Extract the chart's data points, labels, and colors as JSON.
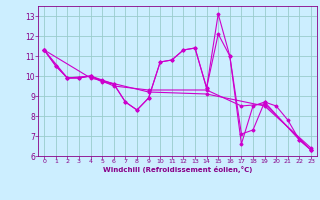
{
  "title": "",
  "xlabel": "Windchill (Refroidissement éolien,°C)",
  "ylabel": "",
  "background_color": "#cceeff",
  "grid_color": "#99cccc",
  "line_color": "#cc00cc",
  "xlim": [
    -0.5,
    23.5
  ],
  "ylim": [
    6,
    13.5
  ],
  "xticks": [
    0,
    1,
    2,
    3,
    4,
    5,
    6,
    7,
    8,
    9,
    10,
    11,
    12,
    13,
    14,
    15,
    16,
    17,
    18,
    19,
    20,
    21,
    22,
    23
  ],
  "yticks": [
    6,
    7,
    8,
    9,
    10,
    11,
    12,
    13
  ],
  "lines": [
    {
      "x": [
        0,
        1,
        2,
        3,
        4,
        5,
        6,
        7,
        8,
        9,
        10,
        11,
        12,
        13,
        14,
        15,
        16,
        17,
        18,
        19,
        22,
        23
      ],
      "y": [
        11.3,
        10.5,
        9.9,
        9.9,
        10.0,
        9.8,
        9.6,
        8.7,
        8.3,
        8.9,
        10.7,
        10.8,
        11.3,
        11.4,
        9.4,
        13.1,
        11.0,
        6.6,
        8.5,
        8.7,
        6.8,
        6.3
      ]
    },
    {
      "x": [
        0,
        1,
        2,
        3,
        4,
        5,
        6,
        7,
        8,
        9,
        10,
        11,
        12,
        13,
        14,
        15,
        16,
        17,
        18,
        19,
        20,
        21,
        22,
        23
      ],
      "y": [
        11.3,
        10.5,
        9.9,
        9.9,
        10.0,
        9.7,
        9.6,
        8.7,
        8.3,
        8.9,
        10.7,
        10.8,
        11.3,
        11.4,
        9.4,
        12.1,
        11.0,
        7.1,
        7.3,
        8.7,
        8.5,
        7.8,
        6.8,
        6.3
      ]
    },
    {
      "x": [
        0,
        2,
        4,
        6,
        9,
        14,
        17,
        19,
        23
      ],
      "y": [
        11.3,
        9.9,
        10.0,
        9.5,
        9.3,
        9.3,
        8.5,
        8.6,
        6.3
      ]
    },
    {
      "x": [
        0,
        4,
        9,
        14,
        19,
        23
      ],
      "y": [
        11.3,
        9.9,
        9.2,
        9.1,
        8.5,
        6.4
      ]
    }
  ]
}
